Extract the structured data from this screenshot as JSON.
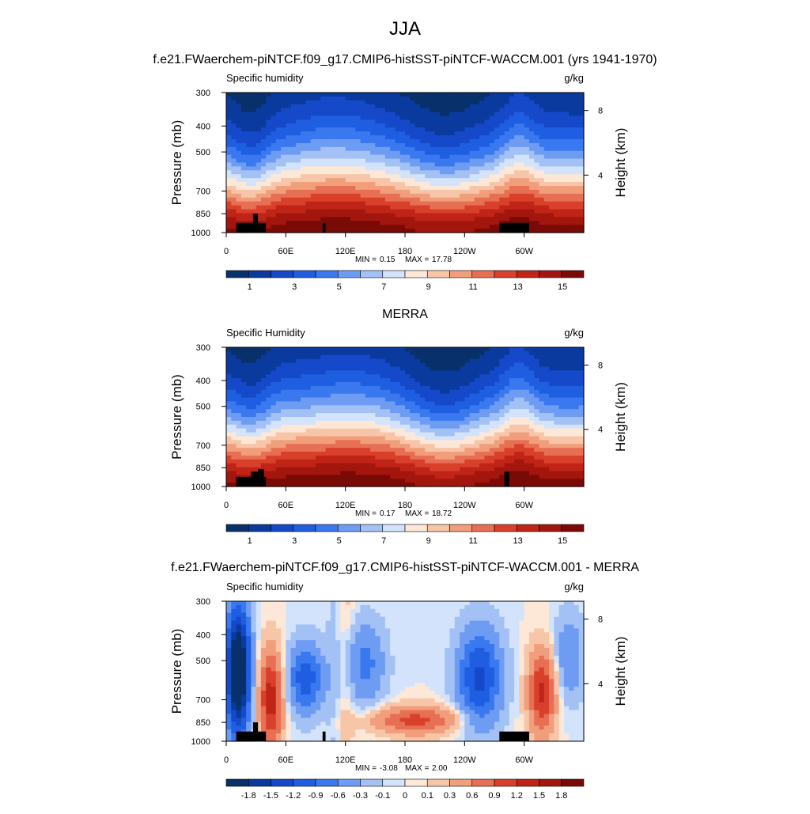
{
  "title": "JJA",
  "colors": {
    "abs": [
      "#08306b",
      "#0a3a9e",
      "#1549c9",
      "#1f5ee0",
      "#3a78f0",
      "#6f9cf3",
      "#a3c1f5",
      "#d3e3fb",
      "#fde8d8",
      "#f7c5a8",
      "#f19e7c",
      "#e76f53",
      "#d8402c",
      "#c02417",
      "#a3160e",
      "#7a0a06"
    ],
    "diff": [
      "#08306b",
      "#0a3a9e",
      "#1549c9",
      "#1f5ee0",
      "#3a78f0",
      "#6f9cf3",
      "#a3c1f5",
      "#d3e3fb",
      "#fde8d8",
      "#f7c5a8",
      "#f19e7c",
      "#e76f53",
      "#d8402c",
      "#c02417",
      "#a3160e",
      "#7a0a06"
    ],
    "land": "#000000"
  },
  "chart_data": [
    {
      "type": "heatmap",
      "kind": "abs",
      "header": "f.e21.FWaerchem-piNTCF.f09_g17.CMIP6-histSST-piNTCF-WACCM.001 (yrs 1941-1970)",
      "left_label": "Specific humidity",
      "right_label": "g/kg",
      "ylabel": "Pressure (mb)",
      "ylabel_right": "Height (km)",
      "yticks": [
        "300",
        "400",
        "500",
        "700",
        "850",
        "1000"
      ],
      "yticks_right": [
        "8",
        "4"
      ],
      "xticks": [
        "0",
        "60E",
        "120E",
        "180",
        "120W",
        "60W"
      ],
      "xlim": [
        0,
        360
      ],
      "ylim": [
        1000,
        300
      ],
      "min_label": "MIN =",
      "min": "0.15",
      "max_label": "MAX =",
      "max": "17.78",
      "colorbar_labels": [
        "1",
        "3",
        "5",
        "7",
        "9",
        "11",
        "13",
        "15"
      ]
    },
    {
      "type": "heatmap",
      "kind": "abs",
      "header": "MERRA",
      "left_label": "Specific Humidity",
      "right_label": "g/kg",
      "ylabel": "Pressure (mb)",
      "ylabel_right": "Height (km)",
      "yticks": [
        "300",
        "400",
        "500",
        "700",
        "850",
        "1000"
      ],
      "yticks_right": [
        "8",
        "4"
      ],
      "xticks": [
        "0",
        "60E",
        "120E",
        "180",
        "120W",
        "60W"
      ],
      "xlim": [
        0,
        360
      ],
      "ylim": [
        1000,
        300
      ],
      "min_label": "MIN =",
      "min": "0.17",
      "max_label": "MAX =",
      "max": "18.72",
      "colorbar_labels": [
        "1",
        "3",
        "5",
        "7",
        "9",
        "11",
        "13",
        "15"
      ]
    },
    {
      "type": "heatmap",
      "kind": "diff",
      "header": "f.e21.FWaerchem-piNTCF.f09_g17.CMIP6-histSST-piNTCF-WACCM.001 - MERRA",
      "left_label": "Specific humidity",
      "right_label": "g/kg",
      "ylabel": "Pressure (mb)",
      "ylabel_right": "Height (km)",
      "yticks": [
        "300",
        "400",
        "500",
        "700",
        "850",
        "1000"
      ],
      "yticks_right": [
        "8",
        "4"
      ],
      "xticks": [
        "0",
        "60E",
        "120E",
        "180",
        "120W",
        "60W"
      ],
      "xlim": [
        0,
        360
      ],
      "ylim": [
        1000,
        300
      ],
      "min_label": "MIN =",
      "min": "-3.08",
      "max_label": "MAX =",
      "max": "2.00",
      "colorbar_labels": [
        "-1.8",
        "-1.5",
        "-1.2",
        "-0.9",
        "-0.6",
        "-0.3",
        "-0.1",
        "0",
        "0.1",
        "0.3",
        "0.6",
        "0.9",
        "1.2",
        "1.5",
        "1.8"
      ]
    }
  ]
}
